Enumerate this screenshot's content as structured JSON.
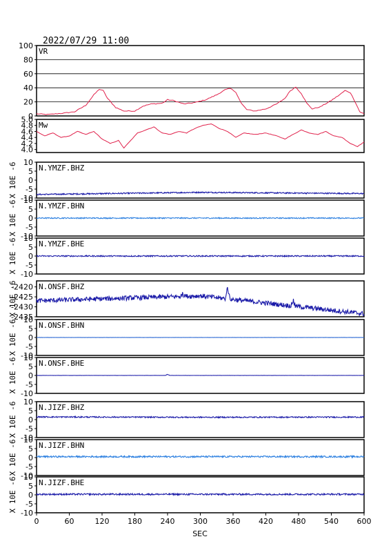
{
  "header": {
    "datetime": "2022/07/29  11:00"
  },
  "colors": {
    "vr": "#e0204a",
    "mw": "#e0204a",
    "dark_blue": "#1a1aa8",
    "mid_blue": "#1f5fd0",
    "light_blue": "#2b7fe0",
    "frame": "#000000"
  },
  "chart_data": {
    "type": "line",
    "xlabel": "SEC",
    "xlim": [
      0,
      600
    ],
    "x_ticks": [
      "0",
      "60",
      "120",
      "180",
      "240",
      "300",
      "360",
      "420",
      "480",
      "540",
      "600"
    ],
    "panels": [
      {
        "id": "vr",
        "label": "VR",
        "ylabel": "",
        "ylim": [
          0,
          100
        ],
        "y_ticks": [
          "0",
          "20",
          "40",
          "60",
          "80",
          "100"
        ],
        "gridlines": [
          20,
          40,
          60,
          80
        ],
        "color": "vr",
        "series": [
          {
            "t": 0,
            "v": 3
          },
          {
            "t": 20,
            "v": 2
          },
          {
            "t": 50,
            "v": 4
          },
          {
            "t": 70,
            "v": 6
          },
          {
            "t": 90,
            "v": 15
          },
          {
            "t": 105,
            "v": 30
          },
          {
            "t": 115,
            "v": 38
          },
          {
            "t": 122,
            "v": 36
          },
          {
            "t": 130,
            "v": 25
          },
          {
            "t": 145,
            "v": 12
          },
          {
            "t": 160,
            "v": 7
          },
          {
            "t": 180,
            "v": 7
          },
          {
            "t": 195,
            "v": 14
          },
          {
            "t": 210,
            "v": 17
          },
          {
            "t": 230,
            "v": 18
          },
          {
            "t": 240,
            "v": 23
          },
          {
            "t": 250,
            "v": 22
          },
          {
            "t": 270,
            "v": 17
          },
          {
            "t": 290,
            "v": 19
          },
          {
            "t": 310,
            "v": 23
          },
          {
            "t": 330,
            "v": 30
          },
          {
            "t": 345,
            "v": 37
          },
          {
            "t": 355,
            "v": 39
          },
          {
            "t": 365,
            "v": 34
          },
          {
            "t": 375,
            "v": 18
          },
          {
            "t": 385,
            "v": 9
          },
          {
            "t": 400,
            "v": 7
          },
          {
            "t": 420,
            "v": 10
          },
          {
            "t": 440,
            "v": 17
          },
          {
            "t": 455,
            "v": 25
          },
          {
            "t": 465,
            "v": 36
          },
          {
            "t": 475,
            "v": 41
          },
          {
            "t": 485,
            "v": 32
          },
          {
            "t": 495,
            "v": 18
          },
          {
            "t": 505,
            "v": 10
          },
          {
            "t": 520,
            "v": 13
          },
          {
            "t": 540,
            "v": 22
          },
          {
            "t": 555,
            "v": 30
          },
          {
            "t": 565,
            "v": 36
          },
          {
            "t": 575,
            "v": 33
          },
          {
            "t": 585,
            "v": 18
          },
          {
            "t": 592,
            "v": 6
          },
          {
            "t": 600,
            "v": 3
          }
        ]
      },
      {
        "id": "mw",
        "label": "Mw",
        "ylabel": "",
        "ylim": [
          3.9,
          5.0
        ],
        "y_ticks": [
          "4.0",
          "4.2",
          "4.4",
          "4.6",
          "4.8",
          "5.0"
        ],
        "y_tick_values": [
          4.0,
          4.2,
          4.4,
          4.6,
          4.8,
          5.0
        ],
        "gridlines": [],
        "color": "mw",
        "series": [
          {
            "t": 0,
            "v": 4.6
          },
          {
            "t": 15,
            "v": 4.45
          },
          {
            "t": 30,
            "v": 4.55
          },
          {
            "t": 45,
            "v": 4.4
          },
          {
            "t": 60,
            "v": 4.45
          },
          {
            "t": 75,
            "v": 4.6
          },
          {
            "t": 90,
            "v": 4.5
          },
          {
            "t": 105,
            "v": 4.6
          },
          {
            "t": 120,
            "v": 4.35
          },
          {
            "t": 135,
            "v": 4.2
          },
          {
            "t": 150,
            "v": 4.3
          },
          {
            "t": 160,
            "v": 4.05
          },
          {
            "t": 170,
            "v": 4.25
          },
          {
            "t": 185,
            "v": 4.55
          },
          {
            "t": 200,
            "v": 4.65
          },
          {
            "t": 215,
            "v": 4.75
          },
          {
            "t": 230,
            "v": 4.55
          },
          {
            "t": 245,
            "v": 4.5
          },
          {
            "t": 260,
            "v": 4.6
          },
          {
            "t": 275,
            "v": 4.55
          },
          {
            "t": 290,
            "v": 4.7
          },
          {
            "t": 305,
            "v": 4.8
          },
          {
            "t": 320,
            "v": 4.85
          },
          {
            "t": 335,
            "v": 4.7
          },
          {
            "t": 350,
            "v": 4.6
          },
          {
            "t": 365,
            "v": 4.4
          },
          {
            "t": 380,
            "v": 4.55
          },
          {
            "t": 400,
            "v": 4.5
          },
          {
            "t": 420,
            "v": 4.55
          },
          {
            "t": 440,
            "v": 4.45
          },
          {
            "t": 455,
            "v": 4.35
          },
          {
            "t": 470,
            "v": 4.5
          },
          {
            "t": 485,
            "v": 4.65
          },
          {
            "t": 500,
            "v": 4.55
          },
          {
            "t": 515,
            "v": 4.5
          },
          {
            "t": 530,
            "v": 4.6
          },
          {
            "t": 545,
            "v": 4.45
          },
          {
            "t": 560,
            "v": 4.4
          },
          {
            "t": 575,
            "v": 4.2
          },
          {
            "t": 588,
            "v": 4.1
          },
          {
            "t": 600,
            "v": 4.25
          }
        ]
      },
      {
        "id": "ymzf-bhz",
        "label": "N.YMZF.BHZ",
        "ylabel": "X 10E -6",
        "ylim": [
          -10,
          10
        ],
        "y_ticks": [
          "-10",
          "-5",
          "0",
          "5",
          "10"
        ],
        "color": "dark_blue",
        "trace": {
          "base_start": -8,
          "base_mid": -6.8,
          "base_end": -7.5,
          "noise": 0.35,
          "spikes": []
        }
      },
      {
        "id": "ymzf-bhn",
        "label": "N.YMZF.BHN",
        "ylabel": "X 10E -6",
        "ylim": [
          -10,
          10
        ],
        "y_ticks": [
          "-10",
          "-5",
          "0",
          "5",
          "10"
        ],
        "color": "light_blue",
        "trace": {
          "base_start": 0,
          "base_mid": 0,
          "base_end": 0,
          "noise": 0.3,
          "spikes": []
        }
      },
      {
        "id": "ymzf-bhe",
        "label": "N.YMZF.BHE",
        "ylabel": "X 10E -6",
        "ylim": [
          -10,
          10
        ],
        "y_ticks": [
          "-10",
          "-5",
          "0",
          "5",
          "10"
        ],
        "color": "dark_blue",
        "trace": {
          "base_start": 0,
          "base_mid": 0,
          "base_end": 0,
          "noise": 0.35,
          "spikes": []
        }
      },
      {
        "id": "onsf-bhz",
        "label": "N.ONSF.BHZ",
        "ylabel": "X 10E -6",
        "ylim": [
          -2435,
          -2417
        ],
        "y_ticks": [
          "-2435",
          "-2430",
          "-2425",
          "-2420"
        ],
        "y_tick_values": [
          -2435,
          -2430,
          -2425,
          -2420
        ],
        "color": "dark_blue",
        "trace": {
          "base_start": -2427,
          "base_mid": -2424.5,
          "base_end": -2433.5,
          "noise": 1.2,
          "spikes": [
            {
              "t": 150,
              "v": -2426
            },
            {
              "t": 268,
              "v": -2423
            },
            {
              "t": 350,
              "v": -2418
            },
            {
              "t": 470,
              "v": -2426
            }
          ]
        }
      },
      {
        "id": "onsf-bhn",
        "label": "N.ONSF.BHN",
        "ylabel": "X 10E -6",
        "ylim": [
          -10,
          10
        ],
        "y_ticks": [
          "-10",
          "-5",
          "0",
          "5",
          "10"
        ],
        "color": "mid_blue",
        "trace": {
          "base_start": 0,
          "base_mid": 0,
          "base_end": 0,
          "noise": 0.05,
          "spikes": []
        }
      },
      {
        "id": "onsf-bhe",
        "label": "N.ONSF.BHE",
        "ylabel": "X 10E -6",
        "ylim": [
          -10,
          10
        ],
        "y_ticks": [
          "-10",
          "-5",
          "0",
          "5",
          "10"
        ],
        "color": "dark_blue",
        "trace": {
          "base_start": 0,
          "base_mid": 0,
          "base_end": 0,
          "noise": 0.05,
          "spikes": [
            {
              "t": 240,
              "v": 0.8
            }
          ]
        }
      },
      {
        "id": "jizf-bhz",
        "label": "N.JIZF.BHZ",
        "ylabel": "X 10E -6",
        "ylim": [
          -10,
          10
        ],
        "y_ticks": [
          "-10",
          "-5",
          "0",
          "5",
          "10"
        ],
        "color": "dark_blue",
        "trace": {
          "base_start": 1.5,
          "base_mid": 1.3,
          "base_end": 1.4,
          "noise": 0.35,
          "spikes": []
        }
      },
      {
        "id": "jizf-bhn",
        "label": "N.JIZF.BHN",
        "ylabel": "X 10E -6",
        "ylim": [
          -10,
          10
        ],
        "y_ticks": [
          "-10",
          "-5",
          "0",
          "5",
          "10"
        ],
        "color": "light_blue",
        "trace": {
          "base_start": 0.5,
          "base_mid": 0.5,
          "base_end": 0.5,
          "noise": 0.45,
          "spikes": []
        }
      },
      {
        "id": "jizf-bhe",
        "label": "N.JIZF.BHE",
        "ylabel": "X 10E -6",
        "ylim": [
          -10,
          10
        ],
        "y_ticks": [
          "-10",
          "-5",
          "0",
          "5",
          "10"
        ],
        "color": "dark_blue",
        "trace": {
          "base_start": 0.3,
          "base_mid": 0.3,
          "base_end": 0.3,
          "noise": 0.45,
          "spikes": []
        }
      }
    ]
  }
}
